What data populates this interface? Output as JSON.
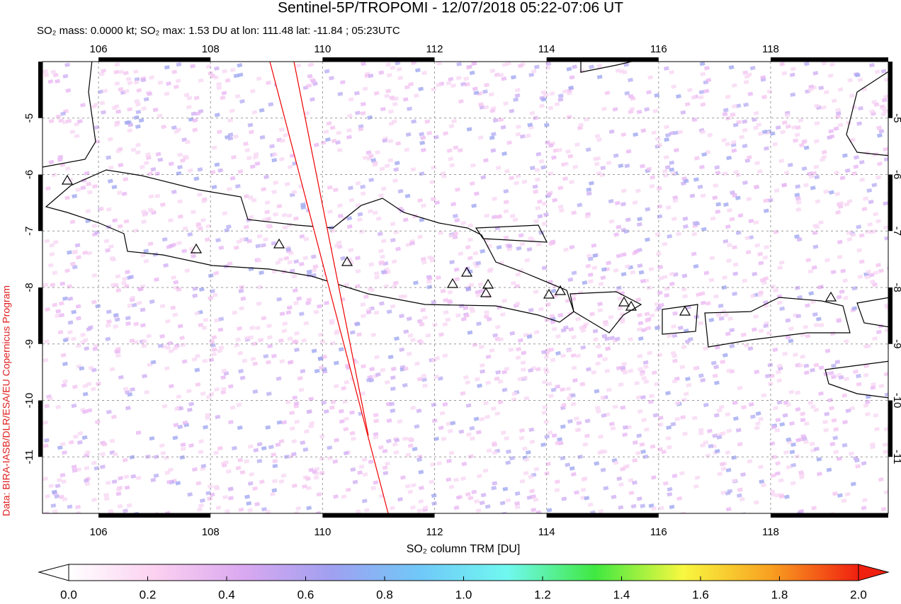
{
  "chart_data": {
    "type": "map",
    "title": "Sentinel-5P/TROPOMI - 12/07/2018 05:22-07:06 UT",
    "subtitle": "SO₂ mass: 0.0000 kt; SO₂ max: 1.53 DU at lon: 111.48 lat: -11.84 ; 05:23UTC",
    "credit": "Data: BIRA-IASB/DLR/ESA/EU Copernicus Program",
    "xlim": [
      105,
      120.1
    ],
    "xticks": [
      106,
      108,
      110,
      112,
      114,
      116,
      118
    ],
    "ylim": [
      -12,
      -4
    ],
    "yticks": [
      -5,
      -6,
      -7,
      -8,
      -9,
      -10,
      -11
    ],
    "grid": true,
    "colorbar": {
      "label": "SO₂ column TRM [DU]",
      "lim": [
        0,
        2
      ],
      "ticks": [
        {
          "value": 0,
          "label": "0.0"
        },
        0.2,
        0.4,
        0.6,
        0.8,
        {
          "value": 1,
          "label": "1.0"
        },
        1.2,
        1.4,
        1.6,
        1.8,
        {
          "value": 2,
          "label": "2.0"
        }
      ],
      "colormap": [
        "#ffffff",
        "#fbd0f0",
        "#d9a8f0",
        "#a0a0f0",
        "#70c8f8",
        "#70f8f0",
        "#40e840",
        "#f8f840",
        "#f8a020",
        "#f02010"
      ]
    }
  }
}
